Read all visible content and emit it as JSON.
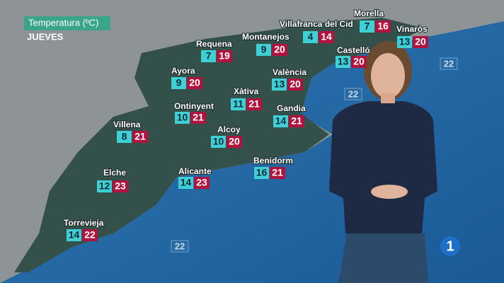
{
  "header": {
    "title": "Temperatura (ºC)",
    "day": "JUEVES"
  },
  "cities": [
    {
      "name": "Villafranca del Cid",
      "min": 4,
      "max": 14
    },
    {
      "name": "Morella",
      "min": 7,
      "max": 16
    },
    {
      "name": "Vinaròs",
      "min": 13,
      "max": 20
    },
    {
      "name": "Requena",
      "min": 7,
      "max": 19
    },
    {
      "name": "Montanejos",
      "min": 9,
      "max": 20
    },
    {
      "name": "Castelló",
      "min": 13,
      "max": 20
    },
    {
      "name": "Ayora",
      "min": 9,
      "max": 20
    },
    {
      "name": "València",
      "min": 13,
      "max": 20
    },
    {
      "name": "Xàtiva",
      "min": 11,
      "max": 21
    },
    {
      "name": "Ontinyent",
      "min": 10,
      "max": 21
    },
    {
      "name": "Gandia",
      "min": 14,
      "max": 21
    },
    {
      "name": "Alcoy",
      "min": 10,
      "max": 20
    },
    {
      "name": "Villena",
      "min": 8,
      "max": 21
    },
    {
      "name": "Benidorm",
      "min": 16,
      "max": 21
    },
    {
      "name": "Alicante",
      "min": 14,
      "max": 23
    },
    {
      "name": "Elche",
      "min": 12,
      "max": 23
    },
    {
      "name": "Torrevieja",
      "min": 14,
      "max": 22
    }
  ],
  "sea_temperatures": [
    22,
    22,
    22
  ],
  "logo": "1"
}
